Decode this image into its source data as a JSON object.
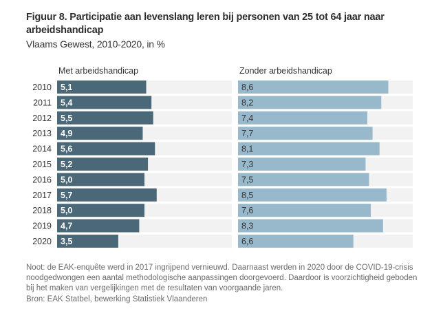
{
  "header": {
    "title": "Figuur 8. Participatie aan levenslang leren bij personen van 25 tot 64 jaar naar arbeidshandicap",
    "subtitle": "Vlaams Gewest, 2010-2020, in %"
  },
  "footer": {
    "note": "Noot: de EAK-enquête werd in 2017 ingrijpend vernieuwd. Daarnaast werden in 2020 door de COVID-19-crisis noodgedwongen een aantal methodologische aanpassingen doorgevoerd. Daardoor is voorzichtigheid geboden bij het maken van vergelijkingen met de resultaten van voorgaande jaren.",
    "source": "Bron: EAK Statbel, bewerking Statistiek Vlaanderen"
  },
  "colors": {
    "met": "#4a6878",
    "zonder": "#98b9cb",
    "track": "#f2f2f2",
    "label_on_dark": "#ffffff",
    "label_on_light": "#333333"
  },
  "chart_data": {
    "type": "bar",
    "orientation": "horizontal",
    "layout": "small-multiples",
    "title": "Figuur 8. Participatie aan levenslang leren bij personen van 25 tot 64 jaar naar arbeidshandicap",
    "subtitle": "Vlaams Gewest, 2010-2020, in %",
    "categories": [
      "2010",
      "2011",
      "2012",
      "2013",
      "2014",
      "2015",
      "2016",
      "2017",
      "2018",
      "2019",
      "2020"
    ],
    "xlim": [
      0,
      10
    ],
    "grid": false,
    "legend": "none",
    "series": [
      {
        "name": "Met arbeidshandicap",
        "values": [
          5.1,
          5.4,
          5.5,
          4.9,
          5.6,
          5.2,
          5.0,
          5.7,
          5.0,
          4.7,
          3.5
        ],
        "labels": [
          "5,1",
          "5,4",
          "5,5",
          "4,9",
          "5,6",
          "5,2",
          "5,0",
          "5,7",
          "5,0",
          "4,7",
          "3,5"
        ]
      },
      {
        "name": "Zonder arbeidshandicap",
        "values": [
          8.6,
          8.2,
          7.4,
          7.7,
          8.1,
          7.3,
          7.5,
          8.5,
          7.6,
          8.3,
          6.6
        ],
        "labels": [
          "8,6",
          "8,2",
          "7,4",
          "7,7",
          "8,1",
          "7,3",
          "7,5",
          "8,5",
          "7,6",
          "8,3",
          "6,6"
        ]
      }
    ]
  }
}
